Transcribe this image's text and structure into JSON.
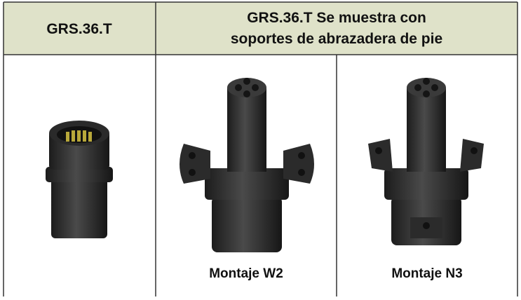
{
  "table": {
    "header": [
      "GRS.36.T",
      [
        "GRS.36.T Se muestra con",
        "soportes de abrazadera de pie"
      ]
    ],
    "captions": [
      "Montaje W2",
      "Montaje N3"
    ]
  }
}
